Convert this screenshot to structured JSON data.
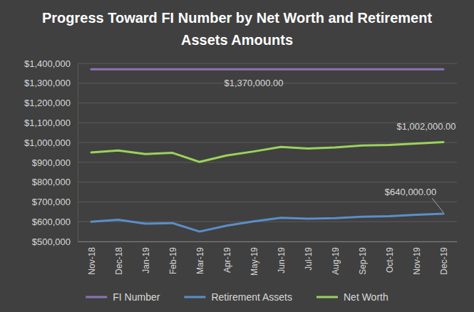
{
  "chart_data": {
    "type": "line",
    "title": "Progress Toward FI Number by Net Worth and Retirement Assets Amounts",
    "categories": [
      "Nov-18",
      "Dec-18",
      "Jan-19",
      "Feb-19",
      "Mar-19",
      "Apr-19",
      "May-19",
      "Jun-19",
      "Jul-19",
      "Aug-19",
      "Sep-19",
      "Oct-19",
      "Nov-19",
      "Dec-19"
    ],
    "series": [
      {
        "name": "FI Number",
        "color": "#8e73b5",
        "values": [
          1370000,
          1370000,
          1370000,
          1370000,
          1370000,
          1370000,
          1370000,
          1370000,
          1370000,
          1370000,
          1370000,
          1370000,
          1370000,
          1370000
        ],
        "value_labels": [
          null,
          null,
          null,
          null,
          null,
          null,
          "$1,370,000.00",
          null,
          null,
          null,
          null,
          null,
          null,
          null
        ]
      },
      {
        "name": "Retirement Assets",
        "color": "#5b8ec9",
        "values": [
          600000,
          610000,
          590000,
          593000,
          550000,
          580000,
          602000,
          620000,
          615000,
          618000,
          625000,
          628000,
          635000,
          640000
        ],
        "value_labels": [
          null,
          null,
          null,
          null,
          null,
          null,
          null,
          null,
          null,
          null,
          null,
          null,
          null,
          "$640,000.00"
        ]
      },
      {
        "name": "Net Worth",
        "color": "#9bd35a",
        "values": [
          950000,
          960000,
          942000,
          948000,
          902000,
          935000,
          955000,
          978000,
          970000,
          975000,
          985000,
          988000,
          995000,
          1002000
        ],
        "value_labels": [
          null,
          null,
          null,
          null,
          null,
          null,
          null,
          null,
          null,
          null,
          null,
          null,
          null,
          "$1,002,000.00"
        ]
      }
    ],
    "ylim": [
      500000,
      1400000
    ],
    "yticks": [
      {
        "value": 500000,
        "label": "$500,000"
      },
      {
        "value": 600000,
        "label": "$600,000"
      },
      {
        "value": 700000,
        "label": "$700,000"
      },
      {
        "value": 800000,
        "label": "$800,000"
      },
      {
        "value": 900000,
        "label": "$900,000"
      },
      {
        "value": 1000000,
        "label": "$1,000,000"
      },
      {
        "value": 1100000,
        "label": "$1,100,000"
      },
      {
        "value": 1200000,
        "label": "$1,200,000"
      },
      {
        "value": 1300000,
        "label": "$1,300,000"
      },
      {
        "value": 1400000,
        "label": "$1,400,000"
      }
    ],
    "grid": true,
    "legend": "bottom"
  }
}
